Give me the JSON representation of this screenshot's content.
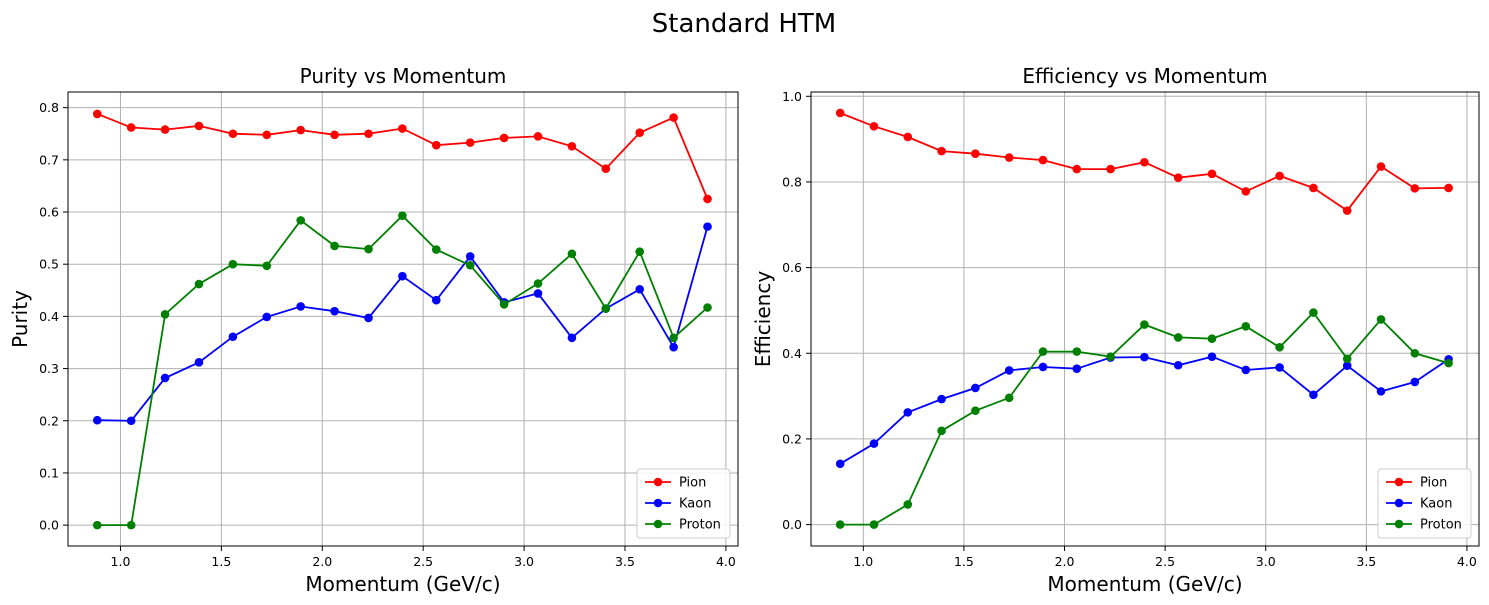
{
  "figure": {
    "suptitle": "Standard HTM"
  },
  "colors": {
    "Pion": "#ff0000",
    "Kaon": "#0000ff",
    "Proton": "#008000"
  },
  "chart_data": [
    {
      "type": "line",
      "title": "Purity vs Momentum",
      "xlabel": "Momentum (GeV/c)",
      "ylabel": "Purity",
      "xlim": [
        0.74,
        4.06
      ],
      "ylim": [
        -0.04,
        0.83
      ],
      "xticks": [
        1.0,
        1.5,
        2.0,
        2.5,
        3.0,
        3.5,
        4.0
      ],
      "xtick_labels": [
        "1.0",
        "1.5",
        "2.0",
        "2.5",
        "3.0",
        "3.5",
        "4.0"
      ],
      "yticks": [
        0.0,
        0.1,
        0.2,
        0.3,
        0.4,
        0.5,
        0.6,
        0.7,
        0.8
      ],
      "ytick_labels": [
        "0.0",
        "0.1",
        "0.2",
        "0.3",
        "0.4",
        "0.5",
        "0.6",
        "0.7",
        "0.8"
      ],
      "grid": true,
      "legend_position": "lower-right",
      "x": [
        0.885,
        1.053,
        1.221,
        1.389,
        1.557,
        1.725,
        1.893,
        2.061,
        2.229,
        2.397,
        2.565,
        2.733,
        2.901,
        3.069,
        3.237,
        3.405,
        3.573,
        3.741,
        3.909
      ],
      "series": [
        {
          "name": "Pion",
          "values": [
            0.788,
            0.762,
            0.758,
            0.765,
            0.75,
            0.748,
            0.757,
            0.748,
            0.75,
            0.76,
            0.728,
            0.733,
            0.742,
            0.745,
            0.726,
            0.683,
            0.752,
            0.781,
            0.625
          ]
        },
        {
          "name": "Kaon",
          "values": [
            0.201,
            0.2,
            0.282,
            0.312,
            0.361,
            0.399,
            0.419,
            0.41,
            0.397,
            0.477,
            0.431,
            0.515,
            0.427,
            0.444,
            0.359,
            0.415,
            0.452,
            0.341,
            0.572
          ]
        },
        {
          "name": "Proton",
          "values": [
            0.0,
            0.0,
            0.404,
            0.462,
            0.5,
            0.497,
            0.584,
            0.535,
            0.529,
            0.593,
            0.528,
            0.498,
            0.423,
            0.463,
            0.52,
            0.415,
            0.524,
            0.359,
            0.417
          ]
        }
      ]
    },
    {
      "type": "line",
      "title": "Efficiency vs Momentum",
      "xlabel": "Momentum (GeV/c)",
      "ylabel": "Efficiency",
      "xlim": [
        0.74,
        4.06
      ],
      "ylim": [
        -0.05,
        1.01
      ],
      "xticks": [
        1.0,
        1.5,
        2.0,
        2.5,
        3.0,
        3.5,
        4.0
      ],
      "xtick_labels": [
        "1.0",
        "1.5",
        "2.0",
        "2.5",
        "3.0",
        "3.5",
        "4.0"
      ],
      "yticks": [
        0.0,
        0.2,
        0.4,
        0.6,
        0.8,
        1.0
      ],
      "ytick_labels": [
        "0.0",
        "0.2",
        "0.4",
        "0.6",
        "0.8",
        "1.0"
      ],
      "grid": true,
      "legend_position": "lower-right",
      "x": [
        0.885,
        1.053,
        1.221,
        1.389,
        1.557,
        1.725,
        1.893,
        2.061,
        2.229,
        2.397,
        2.565,
        2.733,
        2.901,
        3.069,
        3.237,
        3.405,
        3.573,
        3.741,
        3.909
      ],
      "series": [
        {
          "name": "Pion",
          "values": [
            0.961,
            0.93,
            0.905,
            0.872,
            0.866,
            0.857,
            0.851,
            0.83,
            0.83,
            0.846,
            0.81,
            0.819,
            0.778,
            0.814,
            0.786,
            0.733,
            0.836,
            0.785,
            0.786
          ]
        },
        {
          "name": "Kaon",
          "values": [
            0.142,
            0.189,
            0.262,
            0.293,
            0.319,
            0.36,
            0.368,
            0.364,
            0.39,
            0.391,
            0.372,
            0.392,
            0.361,
            0.367,
            0.303,
            0.371,
            0.311,
            0.333,
            0.386
          ]
        },
        {
          "name": "Proton",
          "values": [
            0.0,
            0.0,
            0.047,
            0.219,
            0.266,
            0.296,
            0.404,
            0.404,
            0.392,
            0.467,
            0.437,
            0.434,
            0.463,
            0.414,
            0.495,
            0.387,
            0.479,
            0.4,
            0.377
          ]
        }
      ]
    }
  ]
}
